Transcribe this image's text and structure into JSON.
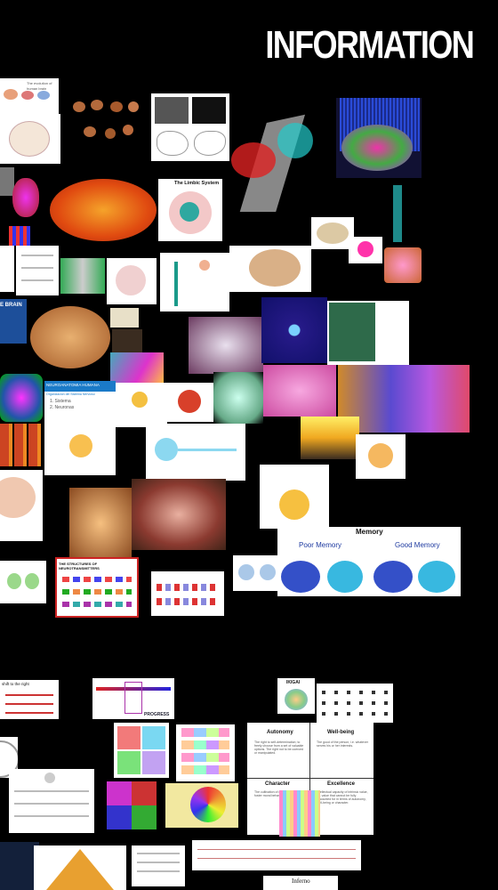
{
  "header": {
    "title": "INFORMATION"
  },
  "cards": {
    "evolution": {
      "label": "The evolution of human brain"
    },
    "limbic": {
      "title": "The Limbic System"
    },
    "brain_banner": {
      "label": "E BRAIN"
    },
    "neuro_anatomy": {
      "title": "NEUROANATOMIA HUMANA",
      "sub": "Organizacion del Sistema Nervioso",
      "line1": "1. Sistema",
      "line2": "2. Neuronas"
    },
    "structures": {
      "title": "THE STRUCTURES OF NEUROTRANSMITTERS"
    },
    "memory": {
      "title": "Memory",
      "poor": "Poor Memory",
      "good": "Good Memory"
    },
    "ikigai": {
      "title": "IKIGAI"
    },
    "shift": {
      "label": "shift to the right"
    },
    "progress": {
      "label": "PROGRESS"
    },
    "quadrant": {
      "autonomy": "Autonomy",
      "wellbeing": "Well-being",
      "character": "Character",
      "excellence": "Excellence",
      "autonomy_text": "The right to self-determination; to freely choose from a set of valuable options. The right not to be coerced or manipulated.",
      "wellbeing_text": "The good of the person, i.e. whatever serves his or her interests.",
      "character_text": "The cultivation of dispositions that foster moral behavior.",
      "excellence_text": "Intellectual capacity of intrinsic value, i.e. value that cannot be fully accounted for in terms of autonomy, well-being or character."
    },
    "inferno": {
      "label": "Inferno"
    }
  },
  "colors": {
    "background": "#000000",
    "title": "#ffffff"
  }
}
